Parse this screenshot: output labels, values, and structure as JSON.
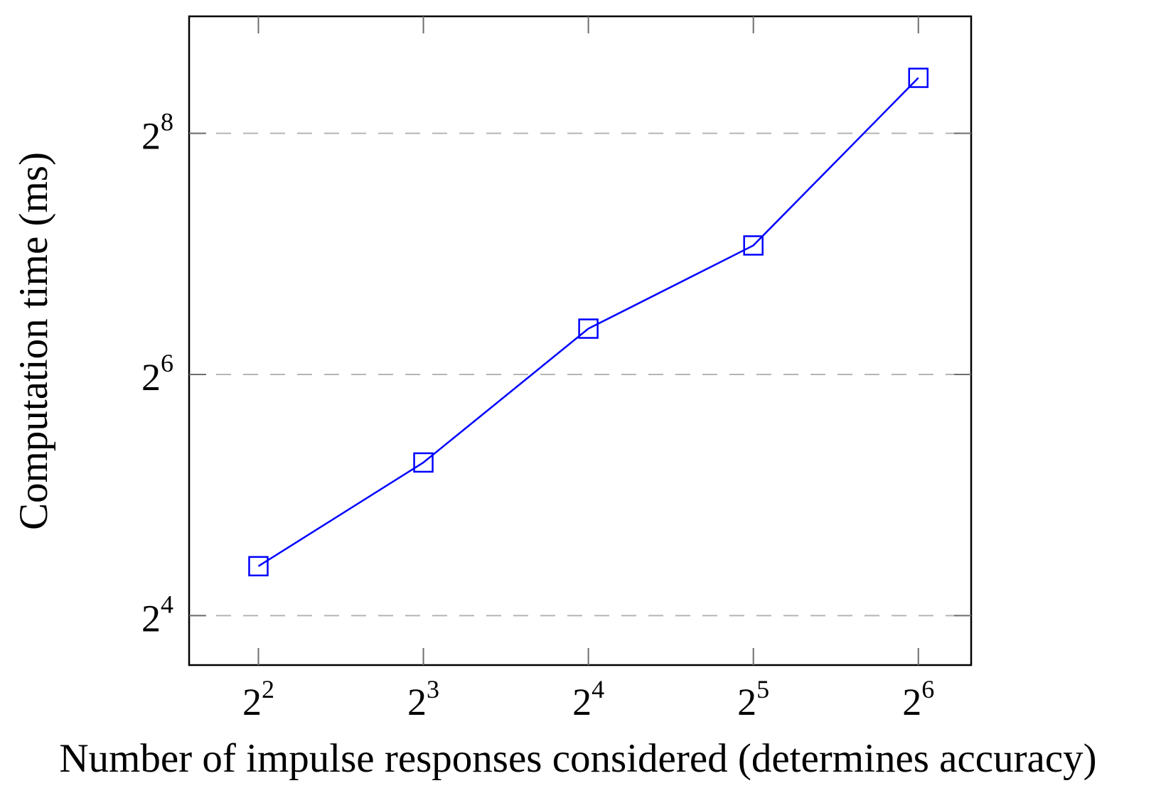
{
  "figure": {
    "background": "#ffffff",
    "title": ""
  },
  "chart_data": {
    "type": "line",
    "title": "",
    "xlabel": "Number of impulse responses considered (determines accuracy)",
    "ylabel": "Computation time (ms)",
    "x_scale": "log2",
    "y_scale": "log2",
    "legend": "none",
    "grid": "y-major-dashed",
    "xlim_log2": [
      1.58,
      6.32
    ],
    "ylim_log2": [
      3.59,
      8.97
    ],
    "x_ticks": [
      {
        "base": "2",
        "sup": "2",
        "log2": 2
      },
      {
        "base": "2",
        "sup": "3",
        "log2": 3
      },
      {
        "base": "2",
        "sup": "4",
        "log2": 4
      },
      {
        "base": "2",
        "sup": "5",
        "log2": 5
      },
      {
        "base": "2",
        "sup": "6",
        "log2": 6
      }
    ],
    "y_ticks": [
      {
        "base": "2",
        "sup": "4",
        "log2": 4
      },
      {
        "base": "2",
        "sup": "6",
        "log2": 6
      },
      {
        "base": "2",
        "sup": "8",
        "log2": 8
      }
    ],
    "series": [
      {
        "name": "computation-time",
        "color": "#0000ff",
        "marker": "open-square",
        "x_values": [
          4,
          8,
          16,
          32,
          64
        ],
        "x_log2": [
          2,
          3,
          4,
          5,
          6
        ],
        "y_log2": [
          4.41,
          5.27,
          6.38,
          7.07,
          8.46
        ],
        "y_ms_approx": [
          21,
          39,
          84,
          135,
          353
        ]
      }
    ],
    "colors": {
      "grid": "#b5b5b5",
      "axis": "#000000",
      "tick": "#6e6e6e",
      "text": "#000000"
    }
  }
}
